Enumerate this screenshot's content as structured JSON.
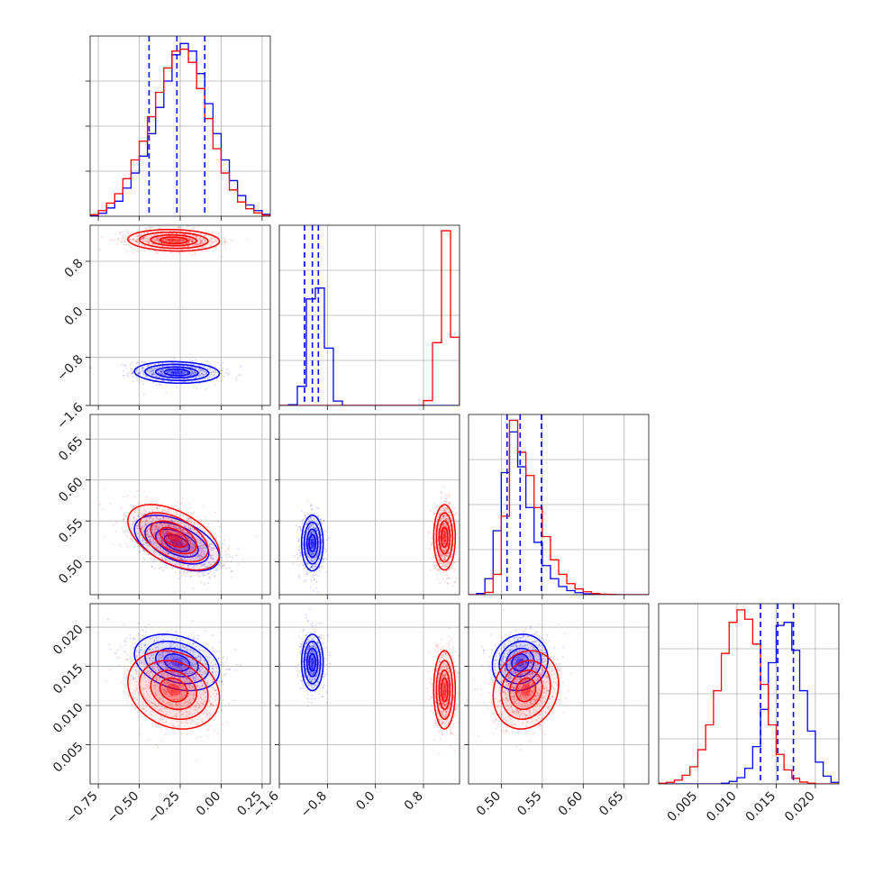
{
  "chart_data": {
    "type": "corner",
    "parameters": 4,
    "series": [
      {
        "name": "",
        "color": "#0000ff",
        "mean": [
          -0.27,
          -1.05,
          0.523,
          0.0155
        ],
        "sd": [
          0.13,
          0.09,
          0.017,
          0.0018
        ],
        "corr": [
          [
            1,
            -0.1,
            -0.5,
            -0.3
          ],
          [
            -0.1,
            1,
            0,
            0
          ],
          [
            -0.5,
            0,
            1,
            0.1
          ],
          [
            -0.3,
            0,
            0.1,
            1
          ]
        ],
        "quantiles": [
          [
            -0.44,
            -0.27,
            -0.1
          ],
          [
            -1.18,
            -1.05,
            -0.95
          ],
          [
            0.507,
            0.523,
            0.549
          ],
          [
            0.013,
            0.0152,
            0.0172
          ]
        ]
      },
      {
        "name": "",
        "color": "#ff0000",
        "mean": [
          -0.29,
          1.15,
          0.53,
          0.012
        ],
        "sd": [
          0.14,
          0.09,
          0.02,
          0.0025
        ],
        "corr": [
          [
            1,
            -0.1,
            -0.5,
            -0.2
          ],
          [
            -0.1,
            1,
            0,
            0
          ],
          [
            -0.5,
            0,
            1,
            0.15
          ],
          [
            -0.2,
            0,
            0.15,
            1
          ]
        ],
        "quantiles": null
      }
    ],
    "histograms": [
      {
        "edges": [
          -0.8,
          -0.75,
          -0.7,
          -0.65,
          -0.6,
          -0.55,
          -0.5,
          -0.45,
          -0.4,
          -0.35,
          -0.3,
          -0.25,
          -0.2,
          -0.15,
          -0.1,
          -0.05,
          0.0,
          0.05,
          0.1,
          0.15,
          0.2,
          0.25,
          0.3
        ],
        "blue": [
          2,
          8,
          22,
          40,
          75,
          115,
          160,
          220,
          290,
          360,
          430,
          460,
          440,
          380,
          300,
          220,
          150,
          95,
          55,
          30,
          15,
          5
        ],
        "red": [
          4,
          15,
          35,
          60,
          100,
          150,
          200,
          265,
          330,
          395,
          440,
          445,
          410,
          340,
          260,
          180,
          115,
          70,
          38,
          20,
          9,
          3
        ]
      },
      {
        "edges": [
          -1.6,
          -1.45,
          -1.3,
          -1.15,
          -1.0,
          -0.85,
          -0.7,
          -0.55,
          -0.4,
          -0.25,
          -0.1,
          0.05,
          0.2,
          0.35,
          0.5,
          0.65,
          0.8,
          0.95,
          1.1,
          1.25,
          1.4
        ],
        "blue": [
          0,
          3,
          70,
          390,
          430,
          210,
          16,
          0,
          0,
          0,
          0,
          0,
          0,
          0,
          0,
          0,
          0,
          0,
          0,
          0
        ],
        "red": [
          0,
          0,
          0,
          0,
          0,
          0,
          0,
          0,
          0,
          0,
          0,
          0,
          0,
          0,
          0,
          0,
          18,
          230,
          640,
          250
        ]
      },
      {
        "edges": [
          0.46,
          0.47,
          0.48,
          0.49,
          0.5,
          0.51,
          0.52,
          0.53,
          0.54,
          0.55,
          0.56,
          0.57,
          0.58,
          0.59,
          0.6,
          0.61,
          0.62,
          0.63,
          0.64,
          0.65,
          0.66,
          0.67,
          0.68
        ],
        "blue": [
          0,
          4,
          55,
          220,
          420,
          560,
          440,
          300,
          180,
          100,
          55,
          28,
          14,
          7,
          3,
          1,
          0,
          0,
          0,
          0,
          0,
          0
        ],
        "red": [
          0,
          0,
          8,
          70,
          270,
          600,
          490,
          410,
          300,
          200,
          120,
          70,
          38,
          20,
          10,
          4,
          2,
          1,
          0,
          0,
          0,
          0
        ]
      },
      {
        "edges": [
          0.0,
          0.001,
          0.002,
          0.003,
          0.004,
          0.005,
          0.006,
          0.007,
          0.008,
          0.009,
          0.01,
          0.011,
          0.012,
          0.013,
          0.014,
          0.015,
          0.016,
          0.017,
          0.018,
          0.019,
          0.02,
          0.021,
          0.022,
          0.023
        ],
        "blue": [
          0,
          0,
          0,
          0,
          0,
          0,
          0,
          0,
          2,
          8,
          20,
          50,
          120,
          240,
          390,
          510,
          520,
          430,
          300,
          170,
          70,
          25,
          5
        ],
        "red": [
          2,
          5,
          12,
          28,
          55,
          110,
          190,
          300,
          420,
          520,
          560,
          530,
          450,
          320,
          190,
          95,
          45,
          18,
          6,
          2,
          0,
          0,
          0
        ]
      }
    ],
    "xlim": [
      [
        -0.8,
        0.3
      ],
      [
        -1.6,
        1.4
      ],
      [
        0.46,
        0.68
      ],
      [
        0.0,
        0.023
      ]
    ],
    "ylim": [
      null,
      [
        -1.6,
        1.4
      ],
      [
        0.46,
        0.68
      ],
      [
        0.0,
        0.023
      ]
    ],
    "diag_ymax": [
      480,
      660,
      620,
      580
    ],
    "ticks": [
      [
        {
          "v": -0.75,
          "label": "−0.75"
        },
        {
          "v": -0.5,
          "label": "−0.50"
        },
        {
          "v": -0.25,
          "label": "−0.25"
        },
        {
          "v": 0.0,
          "label": "0.00"
        },
        {
          "v": 0.25,
          "label": "0.25"
        }
      ],
      [
        {
          "v": -1.6,
          "label": "−1.6"
        },
        {
          "v": -0.8,
          "label": "−0.8"
        },
        {
          "v": 0.0,
          "label": "0.0"
        },
        {
          "v": 0.8,
          "label": "0.8"
        }
      ],
      [
        {
          "v": 0.5,
          "label": "0.50"
        },
        {
          "v": 0.55,
          "label": "0.55"
        },
        {
          "v": 0.6,
          "label": "0.60"
        },
        {
          "v": 0.65,
          "label": "0.65"
        }
      ],
      [
        {
          "v": 0.005,
          "label": "0.005"
        },
        {
          "v": 0.01,
          "label": "0.010"
        },
        {
          "v": 0.015,
          "label": "0.015"
        },
        {
          "v": 0.02,
          "label": "0.020"
        }
      ]
    ],
    "grid": true,
    "legend": "none",
    "title": "",
    "xlabel": "",
    "ylabel": ""
  }
}
